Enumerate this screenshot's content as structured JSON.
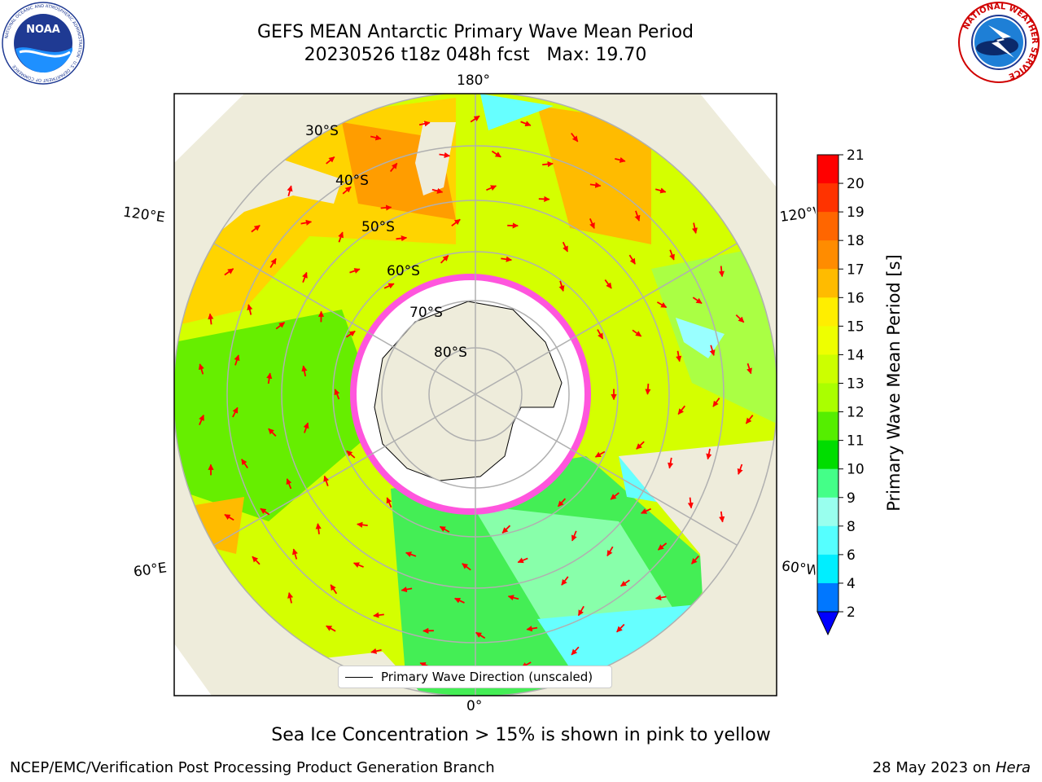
{
  "title": {
    "line1": "GEFS MEAN Antarctic Primary Wave Mean Period",
    "line2": "20230526 t18z 048h fcst   Max: 19.70"
  },
  "logos": {
    "noaa": {
      "name": "noaa-logo",
      "text": "NOAA",
      "ring_text": "NATIONAL OCEANIC AND ATMOSPHERIC ADMINISTRATION · U.S. DEPARTMENT OF COMMERCE"
    },
    "nws": {
      "name": "national-weather-service-logo",
      "ring_text": "NATIONAL WEATHER SERVICE"
    }
  },
  "map": {
    "projection": "south-polar-stereographic",
    "longitude_labels": {
      "top": "180°",
      "bottom": "0°",
      "left_upper": "120°E",
      "left_lower": "60°E",
      "right_upper": "120°W",
      "right_lower": "60°W"
    },
    "latitude_labels": [
      "30°S",
      "40°S",
      "50°S",
      "60°S",
      "70°S",
      "80°S"
    ],
    "colors": {
      "land": "#eeecdb",
      "ice_edge": "#ff33cc",
      "arrow": "#ff0000",
      "grid": "#b0b0b0"
    },
    "legend": {
      "label": "Primary Wave Direction (unscaled)"
    }
  },
  "colorbar": {
    "title": "Primary Wave Mean Period [s]",
    "ticks": [
      "21",
      "20",
      "19",
      "18",
      "17",
      "16",
      "15",
      "14",
      "13",
      "12",
      "11",
      "10",
      "9",
      "8",
      "6",
      "4",
      "2"
    ],
    "colors": [
      "#ff0000",
      "#ff3300",
      "#ff6600",
      "#ff8c00",
      "#ffbb00",
      "#ffee00",
      "#eeff00",
      "#ccff00",
      "#aaff00",
      "#55ee00",
      "#00dd00",
      "#44ff88",
      "#99ffee",
      "#55ffff",
      "#00eeff",
      "#0077ff"
    ],
    "extend_color": "#0000ff"
  },
  "note": "Sea Ice Concentration > 15% is shown in pink to yellow",
  "footer": {
    "left": "NCEP/EMC/Verification Post Processing Product Generation Branch",
    "right_prefix": "28 May 2023 on ",
    "right_host": "Hera"
  }
}
